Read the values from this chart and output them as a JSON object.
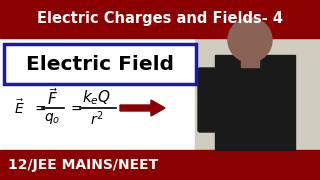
{
  "title_text": "Electric Charges and Fields- 4",
  "subtitle_text": "Electric Field",
  "bottom_text": "12/JEE MAINS/NEET",
  "top_bg_color": "#8b0000",
  "bottom_bg_color": "#8b0000",
  "main_bg_color": "#ffffff",
  "title_color": "#ffffff",
  "subtitle_color": "#000000",
  "bottom_color": "#ffffff",
  "box_border_color": "#1a1aaa",
  "arrow_color": "#8b0000",
  "fig_width": 3.2,
  "fig_height": 1.8,
  "dpi": 100
}
